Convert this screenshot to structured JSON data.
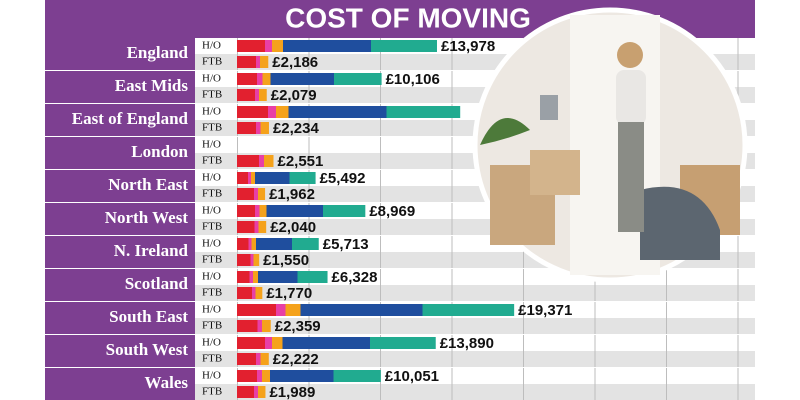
{
  "chart_data": {
    "type": "bar",
    "title": "COST OF MOVING",
    "categories": [
      "England",
      "East Mids",
      "East of England",
      "London",
      "North East",
      "North West",
      "N. Ireland",
      "Scotland",
      "South East",
      "South West",
      "Wales"
    ],
    "series": [
      {
        "name": "H/O",
        "color": "#1f4e9e",
        "values": [
          13978,
          10106,
          15600,
          null,
          5492,
          8969,
          5713,
          6328,
          19371,
          13890,
          10051
        ],
        "value_labels": [
          "£13,978",
          "£10,106",
          null,
          null,
          "£5,492",
          "£8,969",
          "£5,713",
          "£6,328",
          "£19,371",
          "£13,890",
          "£10,051"
        ]
      },
      {
        "name": "FTB",
        "color": "#e2202f",
        "values": [
          2186,
          2079,
          2234,
          2551,
          1962,
          2040,
          1550,
          1770,
          2359,
          2222,
          1989
        ],
        "value_labels": [
          "£2,186",
          "£2,079",
          "£2,234",
          "£2,551",
          "£1,962",
          "£2,040",
          "£1,550",
          "£1,770",
          "£2,359",
          "£2,222",
          "£1,989"
        ]
      }
    ],
    "xlim": [
      0,
      39000
    ]
  }
}
